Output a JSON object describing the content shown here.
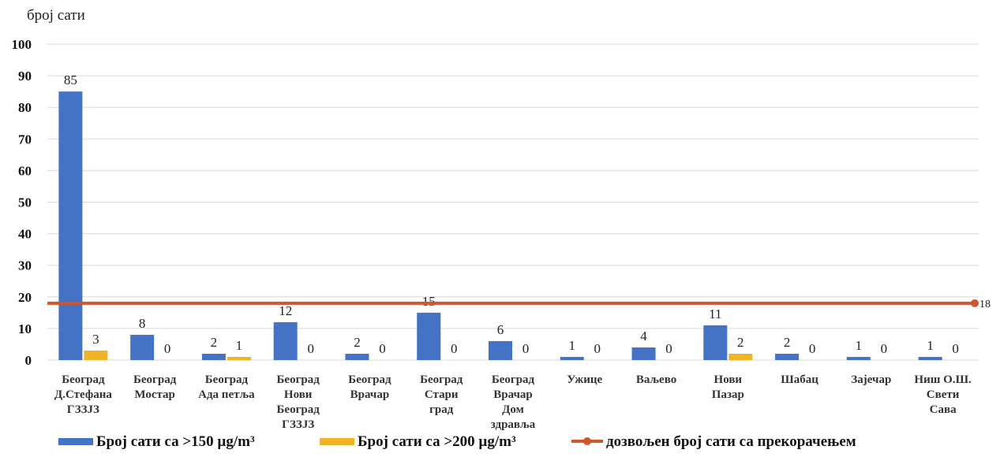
{
  "chart_data": {
    "type": "bar",
    "ylabel": "број сати",
    "ylim": [
      0,
      100
    ],
    "yticks": [
      0,
      10,
      20,
      30,
      40,
      50,
      60,
      70,
      80,
      90,
      100
    ],
    "grid": true,
    "legend_position": "bottom",
    "categories": [
      [
        "Београд",
        "Д.Стефана",
        "ГЗЗЈЗ"
      ],
      [
        "Београд",
        "Мостар"
      ],
      [
        "Београд",
        "Ада петља"
      ],
      [
        "Београд",
        "Нови",
        "Београд",
        "ГЗЗЈЗ"
      ],
      [
        "Београд",
        "Врачар"
      ],
      [
        "Београд",
        "Стари",
        "град"
      ],
      [
        "Београд",
        "Врачар",
        "Дом",
        "здравља"
      ],
      [
        "Ужице"
      ],
      [
        "Ваљево"
      ],
      [
        "Нови",
        "Пазар"
      ],
      [
        "Шабац"
      ],
      [
        "Зајечар"
      ],
      [
        "Ниш О.Ш.",
        "Свети",
        "Сава"
      ]
    ],
    "series": [
      {
        "name": "Број сати са >150 µg/m³",
        "type": "bar",
        "color": "#4472C4",
        "values": [
          85,
          8,
          2,
          12,
          2,
          15,
          6,
          1,
          4,
          11,
          2,
          1,
          1
        ]
      },
      {
        "name": "Број сати са >200 µg/m³",
        "type": "bar",
        "color": "#F0B323",
        "values": [
          3,
          0,
          1,
          0,
          0,
          0,
          0,
          0,
          0,
          2,
          0,
          0,
          0
        ]
      },
      {
        "name": "дозвољен број сати са прекорачењем",
        "type": "line",
        "color": "#D2562B",
        "start_value": 18,
        "end_value": 18,
        "end_label": "18"
      }
    ]
  }
}
